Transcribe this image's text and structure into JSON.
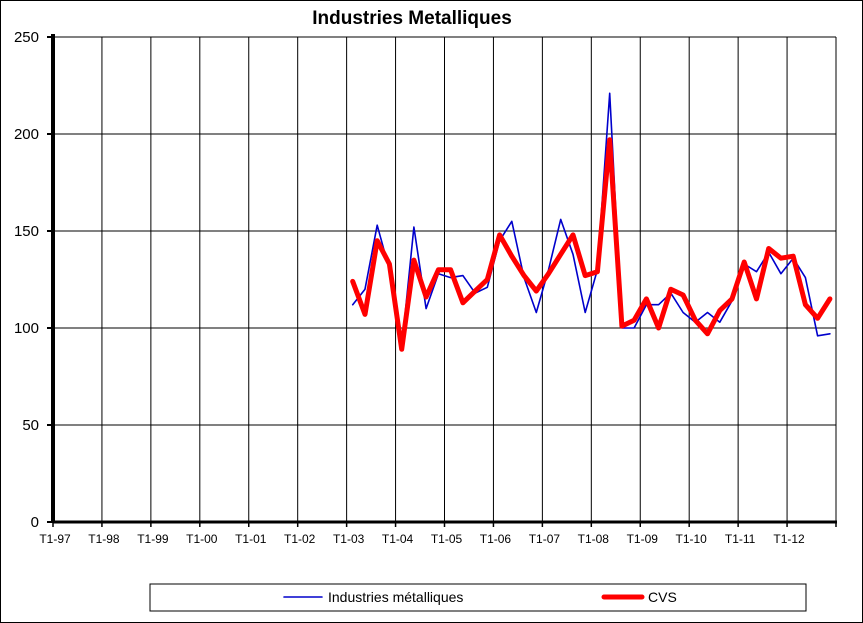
{
  "chart_data": {
    "type": "line",
    "title": "Industries Metalliques",
    "xlabel": "",
    "ylabel": "",
    "ylim": [
      0,
      250
    ],
    "yticks": [
      0,
      50,
      100,
      150,
      200,
      250
    ],
    "grid": true,
    "legend_position": "bottom",
    "x_tick_labels": [
      "T1-97",
      "T1-98",
      "T1-99",
      "T1-00",
      "T1-01",
      "T1-02",
      "T1-03",
      "T1-04",
      "T1-05",
      "T1-06",
      "T1-07",
      "T1-08",
      "T1-09",
      "T1-10",
      "T1-11",
      "T1-12"
    ],
    "x_start": "T1-97",
    "x_end": "T4-12",
    "series": [
      {
        "name": "Industries métalliques",
        "color": "#0000cc",
        "start": "T1-03",
        "values": [
          112,
          120,
          153,
          130,
          90,
          152,
          110,
          128,
          126,
          127,
          118,
          121,
          145,
          155,
          126,
          108,
          130,
          156,
          138,
          108,
          130,
          221,
          100,
          100,
          112,
          112,
          118,
          108,
          103,
          108,
          103,
          114,
          133,
          129,
          139,
          128,
          136,
          126,
          96,
          97
        ]
      },
      {
        "name": "CVS",
        "color": "#ff0000",
        "start": "T1-03",
        "values": [
          124,
          107,
          145,
          133,
          89,
          135,
          116,
          130,
          130,
          113,
          119,
          125,
          148,
          137,
          127,
          119,
          128,
          138,
          148,
          127,
          129,
          197,
          101,
          104,
          115,
          100,
          120,
          117,
          104,
          97,
          109,
          115,
          134,
          115,
          141,
          136,
          137,
          112,
          105,
          115
        ]
      }
    ]
  }
}
